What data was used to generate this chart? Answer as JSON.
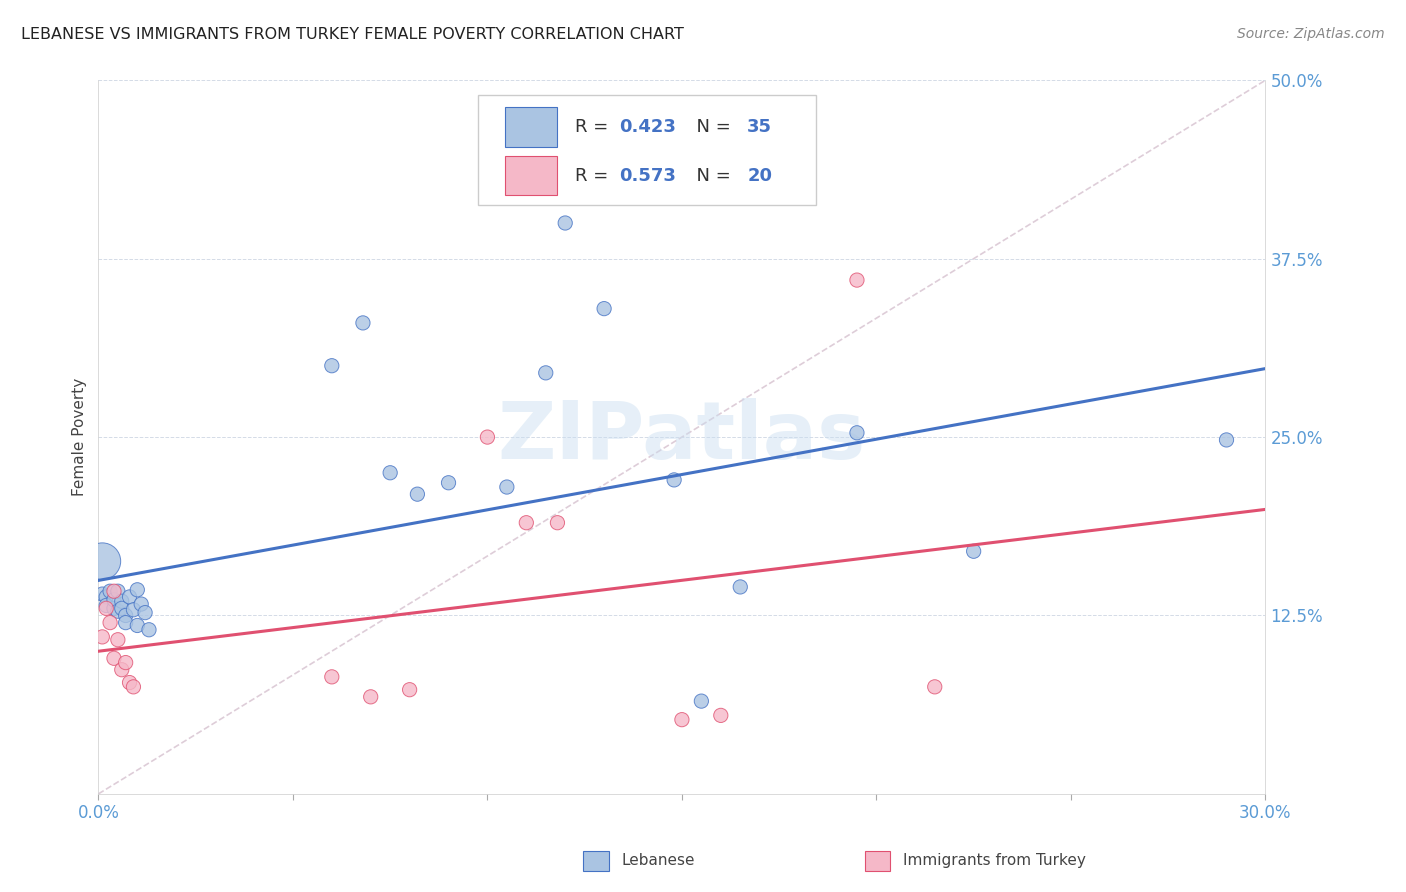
{
  "title": "LEBANESE VS IMMIGRANTS FROM TURKEY FEMALE POVERTY CORRELATION CHART",
  "source": "Source: ZipAtlas.com",
  "ylabel": "Female Poverty",
  "x_min": 0.0,
  "x_max": 0.3,
  "y_min": 0.0,
  "y_max": 0.5,
  "x_ticks": [
    0.0,
    0.05,
    0.1,
    0.15,
    0.2,
    0.25,
    0.3
  ],
  "x_tick_labels": [
    "0.0%",
    "",
    "",
    "",
    "",
    "",
    "30.0%"
  ],
  "y_ticks": [
    0.0,
    0.125,
    0.25,
    0.375,
    0.5
  ],
  "y_tick_labels": [
    "",
    "12.5%",
    "25.0%",
    "37.5%",
    "50.0%"
  ],
  "lebanese_color": "#aac4e2",
  "turkey_color": "#f5b8c8",
  "line_lebanese_color": "#4472c4",
  "line_turkey_color": "#e05070",
  "diagonal_color": "#d0b8c8",
  "R_lebanese": 0.423,
  "N_lebanese": 35,
  "R_turkey": 0.573,
  "N_turkey": 20,
  "lebanese_x": [
    0.001,
    0.002,
    0.002,
    0.003,
    0.004,
    0.004,
    0.005,
    0.005,
    0.006,
    0.006,
    0.007,
    0.007,
    0.008,
    0.009,
    0.01,
    0.01,
    0.011,
    0.012,
    0.013,
    0.06,
    0.068,
    0.075,
    0.082,
    0.09,
    0.105,
    0.115,
    0.12,
    0.13,
    0.148,
    0.155,
    0.165,
    0.195,
    0.225,
    0.29,
    0.001
  ],
  "lebanese_y": [
    0.14,
    0.138,
    0.132,
    0.142,
    0.13,
    0.136,
    0.128,
    0.142,
    0.135,
    0.13,
    0.125,
    0.12,
    0.138,
    0.129,
    0.143,
    0.118,
    0.133,
    0.127,
    0.115,
    0.3,
    0.33,
    0.225,
    0.21,
    0.218,
    0.215,
    0.295,
    0.4,
    0.34,
    0.22,
    0.065,
    0.145,
    0.253,
    0.17,
    0.248,
    0.163
  ],
  "lebanese_sizes": [
    30,
    30,
    30,
    30,
    30,
    30,
    30,
    30,
    30,
    30,
    30,
    30,
    30,
    30,
    30,
    30,
    30,
    30,
    30,
    30,
    30,
    30,
    30,
    30,
    30,
    30,
    30,
    30,
    30,
    30,
    30,
    30,
    30,
    30,
    200
  ],
  "turkey_x": [
    0.001,
    0.002,
    0.003,
    0.004,
    0.004,
    0.005,
    0.006,
    0.007,
    0.008,
    0.009,
    0.06,
    0.07,
    0.08,
    0.1,
    0.11,
    0.118,
    0.15,
    0.16,
    0.195,
    0.215
  ],
  "turkey_y": [
    0.11,
    0.13,
    0.12,
    0.095,
    0.142,
    0.108,
    0.087,
    0.092,
    0.078,
    0.075,
    0.082,
    0.068,
    0.073,
    0.25,
    0.19,
    0.19,
    0.052,
    0.055,
    0.36,
    0.075
  ],
  "turkey_sizes": [
    30,
    30,
    30,
    30,
    30,
    30,
    30,
    30,
    30,
    30,
    30,
    30,
    30,
    30,
    30,
    30,
    30,
    30,
    30,
    30
  ],
  "watermark": "ZIPatlas",
  "watermark_color": "#c8ddf0",
  "background_color": "#ffffff"
}
